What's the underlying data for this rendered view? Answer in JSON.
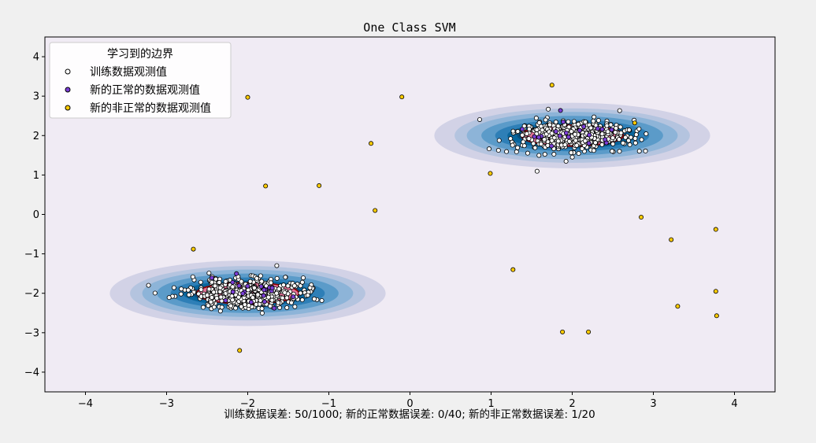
{
  "chart_data": {
    "type": "scatter",
    "title": "One Class SVM",
    "xlabel": "训练数据误差: 50/1000; 新的正常数据误差: 0/40; 新的非正常数据误差: 1/20",
    "ylabel": "",
    "xlim": [
      -4.5,
      4.5
    ],
    "ylim": [
      -4.5,
      4.5
    ],
    "xticks": [
      "−4",
      "−3",
      "−2",
      "−1",
      "0",
      "1",
      "2",
      "3",
      "4"
    ],
    "yticks": [
      "−4",
      "−3",
      "−2",
      "−1",
      "0",
      "1",
      "2",
      "3",
      "4"
    ],
    "legend": {
      "position": "top-left",
      "title": "学习到的边界",
      "entries": [
        "训练数据观测值",
        "新的正常的数据观测值",
        "新的非正常的数据观测值"
      ]
    },
    "clusters": [
      {
        "center": [
          2.0,
          2.0
        ],
        "spread": 0.35,
        "training_points": 500,
        "new_normal_points": 20
      },
      {
        "center": [
          -2.0,
          -2.0
        ],
        "spread": 0.35,
        "training_points": 500,
        "new_normal_points": 20
      }
    ],
    "series": [
      {
        "name": "新的非正常的数据观测值",
        "color": "#ffcc00",
        "points": [
          [
            1.75,
            3.28
          ],
          [
            -2.0,
            2.97
          ],
          [
            -0.1,
            2.98
          ],
          [
            -0.48,
            1.8
          ],
          [
            -1.78,
            0.72
          ],
          [
            -1.12,
            0.73
          ],
          [
            -0.43,
            0.1
          ],
          [
            0.99,
            1.04
          ],
          [
            2.85,
            -0.07
          ],
          [
            3.22,
            -0.64
          ],
          [
            3.77,
            -0.38
          ],
          [
            -2.67,
            -0.88
          ],
          [
            1.27,
            -1.4
          ],
          [
            3.3,
            -2.33
          ],
          [
            3.77,
            -1.95
          ],
          [
            3.78,
            -2.57
          ],
          [
            -2.1,
            -3.45
          ],
          [
            1.88,
            -2.98
          ],
          [
            2.2,
            -2.98
          ],
          [
            2.77,
            2.32
          ]
        ]
      }
    ],
    "colors": {
      "background": "#f0f0f0",
      "plot_background": "#f0ebf4",
      "contour_levels": [
        "#d2d2e6",
        "#b4c4df",
        "#8db4d8",
        "#5b9bc9",
        "#2e7fb7",
        "#09659c",
        "#0a4d7a"
      ],
      "inside_fill": "#e8749a",
      "boundary_line": "#8b0000",
      "training_point": "#ffffff",
      "new_normal_point": "#7b3fd6",
      "abnormal_point": "#ffcc00"
    }
  }
}
